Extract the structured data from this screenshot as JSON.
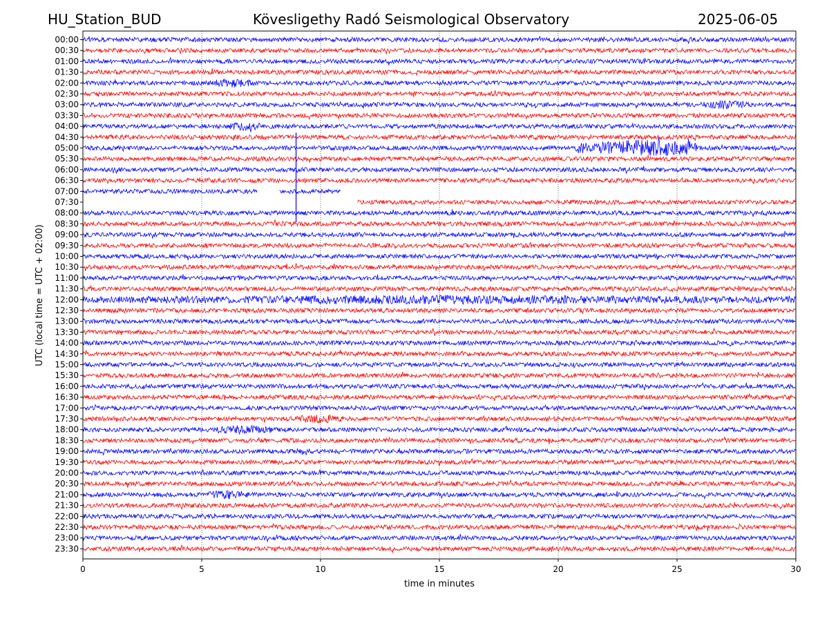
{
  "header": {
    "station": "HU_Station_BUD",
    "observatory": "Kövesligethy Radó Seismological Observatory",
    "date": "2025-06-05"
  },
  "chart_data": {
    "type": "line",
    "title": "Kövesligethy Radó Seismological Observatory",
    "xlabel": "time in minutes",
    "ylabel": "UTC (local time = UTC + 02:00)",
    "xlim": [
      0,
      30
    ],
    "x_ticks": [
      0,
      5,
      10,
      15,
      20,
      25,
      30
    ],
    "x_grid": true,
    "colors": [
      "#0000ff",
      "#ff0000"
    ],
    "rows": [
      "00:00",
      "00:30",
      "01:00",
      "01:30",
      "02:00",
      "02:30",
      "03:00",
      "03:30",
      "04:00",
      "04:30",
      "05:00",
      "05:30",
      "06:00",
      "06:30",
      "07:00",
      "07:30",
      "08:00",
      "08:30",
      "09:00",
      "09:30",
      "10:00",
      "10:30",
      "11:00",
      "11:30",
      "12:00",
      "12:30",
      "13:00",
      "13:30",
      "14:00",
      "14:30",
      "15:00",
      "15:30",
      "16:00",
      "16:30",
      "17:00",
      "17:30",
      "18:00",
      "18:30",
      "19:00",
      "19:30",
      "20:00",
      "20:30",
      "21:00",
      "21:30",
      "22:00",
      "22:30",
      "23:00",
      "23:30"
    ],
    "data_gaps": [
      {
        "row": "07:00",
        "gaps_min": [
          [
            7.35,
            8.25
          ],
          [
            10.85,
            30
          ]
        ]
      },
      {
        "row": "07:30",
        "gaps_min": [
          [
            0,
            11.55
          ]
        ]
      }
    ],
    "events": [
      {
        "row": "05:00",
        "start_min": 20.7,
        "end_min": 25.8,
        "peak_min": 23.8
      },
      {
        "row": "07:00",
        "spike_min": 8.97
      },
      {
        "row": "04:00",
        "start_min": 6.2,
        "end_min": 7.5
      },
      {
        "row": "21:00",
        "start_min": 5.3,
        "end_min": 7.0
      },
      {
        "row": "18:00",
        "start_min": 5.5,
        "end_min": 8.0
      },
      {
        "row": "17:30",
        "start_min": 9.0,
        "end_min": 11.0
      },
      {
        "row": "02:00",
        "start_min": 5.5,
        "end_min": 7.2
      },
      {
        "row": "03:00",
        "start_min": 26.0,
        "end_min": 28.0
      },
      {
        "row": "12:00",
        "start_min": 0,
        "end_min": 30
      }
    ]
  }
}
